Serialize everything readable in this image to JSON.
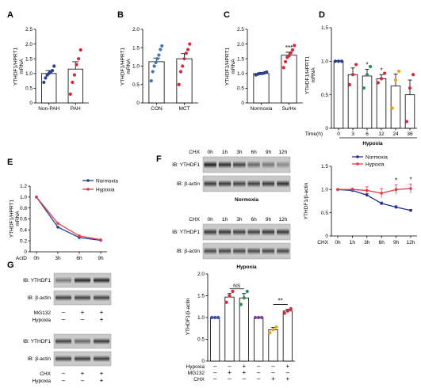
{
  "chart_data": [
    {
      "panel": "A",
      "type": "bar",
      "ylabel": "YTHDF1/HPRT1\nmRNA",
      "ylim": [
        0,
        2.5
      ],
      "yticks": [
        "0",
        "0.5",
        "1.0",
        "1.5",
        "2.0",
        "2.5"
      ],
      "categories": [
        "Non-PAH",
        "PAH"
      ],
      "values": [
        1.0,
        1.15
      ],
      "errors": [
        0.1,
        0.25
      ],
      "colors": [
        "#2a3f8f",
        "#d62839"
      ],
      "points": [
        [
          0.7,
          0.85,
          0.95,
          1.0,
          1.05,
          1.1,
          1.25
        ],
        [
          0.3,
          0.7,
          0.95,
          1.3,
          1.5,
          1.8
        ]
      ]
    },
    {
      "panel": "B",
      "type": "bar",
      "ylabel": "YTHDF1/HPRT1\nmRNA",
      "ylim": [
        0,
        2.0
      ],
      "yticks": [
        "0",
        "0.5",
        "1.0",
        "1.5",
        "2.0"
      ],
      "categories": [
        "CON",
        "MCT"
      ],
      "values": [
        1.12,
        1.2
      ],
      "errors": [
        0.1,
        0.14
      ],
      "colors": [
        "#3c78b5",
        "#d62839"
      ],
      "points": [
        [
          0.6,
          0.85,
          1.0,
          1.1,
          1.2,
          1.3,
          1.45,
          1.55
        ],
        [
          0.5,
          0.85,
          1.0,
          1.2,
          1.35,
          1.45,
          1.6
        ]
      ]
    },
    {
      "panel": "C",
      "type": "bar",
      "ylabel": "YTHDF1/HPRT1\nmRNA",
      "ylim": [
        0,
        2.5
      ],
      "yticks": [
        "0",
        "0.5",
        "1.0",
        "1.5",
        "2.0",
        "2.5"
      ],
      "categories": [
        "Normoxia",
        "Su/Hx"
      ],
      "values": [
        1.0,
        1.62
      ],
      "errors": [
        0.03,
        0.1
      ],
      "colors": [
        "#2a3f8f",
        "#d62839"
      ],
      "points": [
        [
          0.95,
          0.98,
          1.0,
          1.0,
          1.02,
          1.05
        ],
        [
          1.2,
          1.4,
          1.55,
          1.6,
          1.7,
          1.8,
          1.95
        ]
      ],
      "significance": [
        {
          "text": "***",
          "category": 1
        }
      ]
    },
    {
      "panel": "D",
      "type": "bar",
      "ylabel": "YTHDF1/HPRT1\nmRNA",
      "ylim": [
        0,
        1.5
      ],
      "yticks": [
        "0",
        "0.5",
        "1.0",
        "1.5"
      ],
      "xlabel_prefix": "Time(h)",
      "categories": [
        "0",
        "3",
        "6",
        "12",
        "24",
        "36"
      ],
      "values": [
        1.0,
        0.8,
        0.78,
        0.74,
        0.63,
        0.5
      ],
      "errors": [
        0.01,
        0.1,
        0.1,
        0.06,
        0.18,
        0.22
      ],
      "colors": [
        "#2a3f8f",
        "#d62839",
        "#2e8b57",
        "#d62839",
        "#e6a817",
        "#d62839"
      ],
      "points": [
        [
          1.0,
          1.0,
          1.0
        ],
        [
          0.65,
          0.8,
          0.95
        ],
        [
          0.6,
          0.8,
          0.92
        ],
        [
          0.68,
          0.74,
          0.82
        ],
        [
          0.3,
          0.72,
          0.85
        ],
        [
          0.1,
          0.6,
          0.8
        ]
      ],
      "significance": [
        {
          "text": "*",
          "category": 2
        },
        {
          "text": "*",
          "category": 3
        }
      ],
      "group_label": "Hypoxia"
    },
    {
      "panel": "E",
      "type": "line",
      "ylabel": "YTHDF1/HPRT1\nmRNA",
      "ylim": [
        0,
        1.2
      ],
      "yticks": [
        "0",
        "0.2",
        "0.4",
        "0.6",
        "0.8",
        "1.0",
        "1.2"
      ],
      "xprefix": "ActD",
      "x": [
        "0h",
        "3h",
        "6h",
        "9h"
      ],
      "series": [
        {
          "name": "Normoxia",
          "color": "#2a3f8f",
          "values": [
            1.0,
            0.45,
            0.26,
            0.21
          ]
        },
        {
          "name": "Hypoxia",
          "color": "#e63946",
          "values": [
            1.0,
            0.52,
            0.29,
            0.22
          ]
        }
      ]
    },
    {
      "panel": "F",
      "type": "line",
      "ylabel": "YTHDF1/β-actin",
      "ylim": [
        0,
        1.5
      ],
      "yticks": [
        "0",
        "0.5",
        "1.0",
        "1.5"
      ],
      "xprefix": "CHX",
      "x": [
        "0h",
        "1h",
        "3h",
        "6h",
        "9h",
        "12h"
      ],
      "series": [
        {
          "name": "Normoxia",
          "color": "#1f2f8f",
          "values": [
            1.0,
            0.98,
            0.88,
            0.7,
            0.62,
            0.55
          ],
          "errors": [
            0,
            0.02,
            0.03,
            0.03,
            0.03,
            0.02
          ]
        },
        {
          "name": "Hypoxia",
          "color": "#e63946",
          "values": [
            1.0,
            1.0,
            0.98,
            0.92,
            1.0,
            1.02
          ],
          "errors": [
            0,
            0.03,
            0.08,
            0.1,
            0.1,
            0.1
          ]
        }
      ],
      "significance": [
        {
          "text": "*",
          "x_index": 4
        },
        {
          "text": "*",
          "x_index": 5
        }
      ]
    },
    {
      "panel": "G",
      "type": "bar",
      "ylabel": "YTHDF1/β-actin",
      "ylim": [
        0,
        2.0
      ],
      "yticks": [
        "0",
        "0.5",
        "1.0",
        "1.5",
        "2.0"
      ],
      "values": [
        1.0,
        1.47,
        1.45,
        1.0,
        0.72,
        1.15
      ],
      "errors": [
        0.01,
        0.08,
        0.1,
        0.01,
        0.05,
        0.04
      ],
      "colors": [
        "#3c50b5",
        "#d62839",
        "#2e8b57",
        "#7b3fa0",
        "#e6a817",
        "#d62839"
      ],
      "points": [
        [
          1.0,
          1.0,
          1.0
        ],
        [
          1.35,
          1.5,
          1.6
        ],
        [
          1.3,
          1.45,
          1.6
        ],
        [
          1.0,
          1.0,
          1.0
        ],
        [
          0.65,
          0.72,
          0.78
        ],
        [
          1.1,
          1.15,
          1.2
        ]
      ],
      "treatment_rows": [
        {
          "label": "Hypoxia",
          "marks": [
            "–",
            "–",
            "+",
            "–",
            "–",
            "+"
          ]
        },
        {
          "label": "MG132",
          "marks": [
            "–",
            "+",
            "+",
            "–",
            "–",
            "–"
          ]
        },
        {
          "label": "CHX",
          "marks": [
            "–",
            "–",
            "–",
            "–",
            "+",
            "+"
          ]
        }
      ],
      "brackets": [
        {
          "text": "NS",
          "from": 1,
          "to": 2
        },
        {
          "text": "**",
          "from": 4,
          "to": 5
        }
      ]
    }
  ],
  "blots": {
    "F": {
      "chx_label": "CHX",
      "times": [
        "0h",
        "1h",
        "3h",
        "6h",
        "9h",
        "12h"
      ],
      "rows_top": [
        "IB: YTHDF1",
        "IB: β-actin"
      ],
      "cond_top": "Normoxia",
      "rows_bottom": [
        "IB: YTHDF1",
        "IB: β-actin"
      ],
      "cond_bottom": "Hypoxia"
    },
    "G": {
      "top_rows": [
        "IB: YTHDF1",
        "IB: β-actin"
      ],
      "top_treat": [
        {
          "label": "MG132",
          "marks": [
            "–",
            "+",
            "+"
          ]
        },
        {
          "label": "Hypoxia",
          "marks": [
            "–",
            "–",
            "+"
          ]
        }
      ],
      "bottom_rows": [
        "IB: YTHDF1",
        "IB: β-actin"
      ],
      "bottom_treat": [
        {
          "label": "CHX",
          "marks": [
            "–",
            "+",
            "+"
          ]
        },
        {
          "label": "Hypoxia",
          "marks": [
            "–",
            "–",
            "+"
          ]
        }
      ]
    }
  },
  "panel_labels": [
    "A",
    "B",
    "C",
    "D",
    "E",
    "F",
    "G"
  ]
}
